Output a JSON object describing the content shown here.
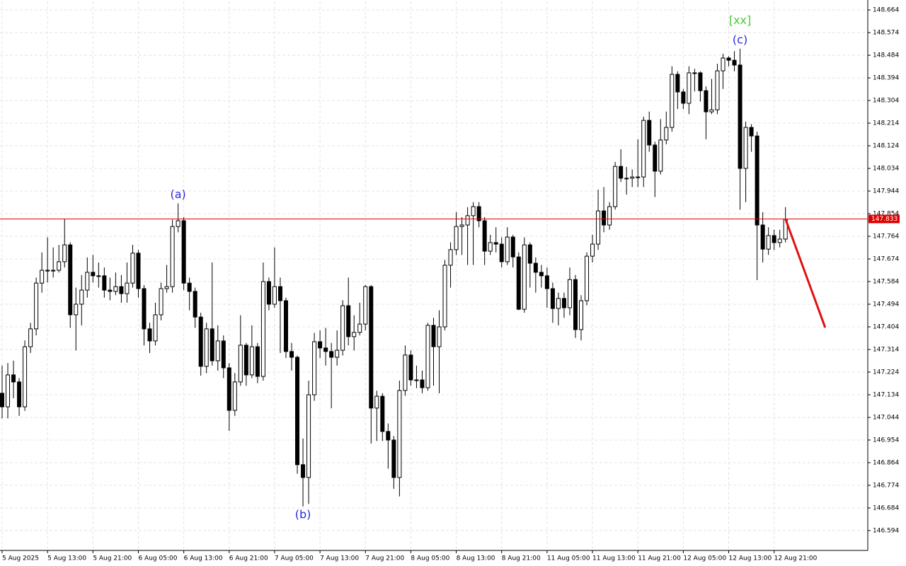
{
  "chart_data": {
    "type": "candlestick",
    "xlim": [
      -0.375,
      152.5
    ],
    "ylim": [
      146.515,
      148.698
    ],
    "yticks": [
      148.664,
      148.574,
      148.484,
      148.394,
      148.304,
      148.214,
      148.124,
      148.034,
      147.944,
      147.854,
      147.764,
      147.674,
      147.584,
      147.494,
      147.404,
      147.314,
      147.224,
      147.134,
      147.044,
      146.954,
      146.864,
      146.774,
      146.684,
      146.594
    ],
    "xticks": [
      {
        "value": 0,
        "label": "5 Aug 2025"
      },
      {
        "value": 8,
        "label": "5 Aug 13:00"
      },
      {
        "value": 16,
        "label": "5 Aug 21:00"
      },
      {
        "value": 24,
        "label": "6 Aug 05:00"
      },
      {
        "value": 32,
        "label": "6 Aug 13:00"
      },
      {
        "value": 40,
        "label": "6 Aug 21:00"
      },
      {
        "value": 48,
        "label": "7 Aug 05:00"
      },
      {
        "value": 56,
        "label": "7 Aug 13:00"
      },
      {
        "value": 64,
        "label": "7 Aug 21:00"
      },
      {
        "value": 72,
        "label": "8 Aug 05:00"
      },
      {
        "value": 80,
        "label": "8 Aug 13:00"
      },
      {
        "value": 88,
        "label": "8 Aug 21:00"
      },
      {
        "value": 96,
        "label": "11 Aug 05:00"
      },
      {
        "value": 104,
        "label": "11 Aug 13:00"
      },
      {
        "value": 112,
        "label": "11 Aug 21:00"
      },
      {
        "value": 120,
        "label": "12 Aug 05:00"
      },
      {
        "value": 128,
        "label": "12 Aug 13:00"
      },
      {
        "value": 136,
        "label": "12 Aug 21:00"
      }
    ],
    "grid": true,
    "up_color": "#ffffff",
    "down_color": "#000000",
    "open": [
      147.14,
      147.086,
      147.213,
      147.185,
      147.086,
      147.325,
      147.396,
      147.578,
      147.629,
      147.626,
      147.629,
      147.663,
      147.73,
      147.452,
      147.494,
      147.55,
      147.621,
      147.607,
      147.607,
      147.55,
      147.545,
      147.564,
      147.536,
      147.578,
      147.697,
      147.556,
      147.396,
      147.348,
      147.452,
      147.556,
      147.564,
      147.803,
      147.826,
      147.578,
      147.545,
      147.443,
      147.247,
      147.396,
      147.269,
      147.348,
      147.241,
      147.072,
      147.185,
      147.331,
      147.213,
      147.325,
      147.207,
      147.584,
      147.494,
      147.564,
      147.508,
      147.306,
      147.283,
      146.856,
      146.805,
      147.134,
      147.345,
      147.32,
      147.306,
      147.283,
      147.311,
      147.488,
      147.365,
      147.382,
      147.415,
      147.564,
      147.081,
      147.128,
      146.988,
      146.954,
      146.805,
      147.151,
      147.292,
      147.193,
      147.193,
      147.162,
      147.41,
      147.325,
      147.404,
      147.649,
      147.711,
      147.803,
      147.809,
      147.846,
      147.882,
      147.826,
      147.705,
      147.739,
      147.733,
      147.663,
      147.761,
      147.682,
      147.474,
      147.73,
      147.657,
      147.621,
      147.607,
      147.556,
      147.477,
      147.517,
      147.48,
      147.592,
      147.393,
      147.508,
      147.685,
      147.733,
      147.865,
      147.809,
      147.882,
      148.042,
      147.995,
      147.995,
      148.0,
      148.0,
      148.225,
      148.127,
      148.023,
      148.147,
      148.197,
      148.408,
      148.338,
      148.293,
      148.414,
      148.414,
      148.343,
      148.259,
      148.267,
      148.422,
      148.473,
      148.464,
      148.445,
      148.034,
      148.197,
      148.163,
      147.809,
      147.713,
      147.767,
      147.739,
      147.753
    ],
    "high": [
      147.25,
      147.26,
      147.27,
      147.2,
      147.35,
      147.42,
      147.6,
      147.7,
      147.76,
      147.72,
      147.73,
      147.833,
      147.74,
      147.56,
      147.61,
      147.68,
      147.69,
      147.66,
      147.64,
      147.6,
      147.62,
      147.61,
      147.66,
      147.73,
      147.71,
      147.57,
      147.42,
      147.5,
      147.58,
      147.65,
      147.83,
      147.895,
      147.84,
      147.6,
      147.56,
      147.46,
      147.42,
      147.66,
      147.41,
      147.37,
      147.26,
      147.22,
      147.45,
      147.34,
      147.41,
      147.34,
      147.66,
      147.6,
      147.72,
      147.6,
      147.52,
      147.34,
      147.29,
      146.96,
      147.19,
      147.38,
      147.39,
      147.4,
      147.34,
      147.39,
      147.51,
      147.6,
      147.45,
      147.5,
      147.57,
      147.57,
      147.15,
      147.14,
      147.02,
      146.97,
      147.19,
      147.33,
      147.31,
      147.25,
      147.23,
      147.42,
      147.44,
      147.47,
      147.67,
      147.74,
      147.86,
      147.84,
      147.88,
      147.9,
      147.9,
      147.84,
      147.77,
      147.8,
      147.76,
      147.8,
      147.77,
      147.7,
      147.76,
      147.74,
      147.68,
      147.65,
      147.64,
      147.58,
      147.54,
      147.54,
      147.64,
      147.61,
      147.53,
      147.7,
      147.77,
      147.95,
      147.96,
      147.9,
      148.06,
      148.11,
      148.04,
      148.03,
      148.15,
      148.24,
      148.26,
      148.14,
      148.23,
      148.26,
      148.44,
      148.42,
      148.35,
      148.44,
      148.43,
      148.42,
      148.36,
      148.39,
      148.45,
      148.49,
      148.48,
      148.5,
      148.51,
      148.22,
      148.21,
      148.18,
      147.86,
      147.8,
      147.79,
      147.79,
      147.88
    ],
    "low": [
      147.04,
      147.04,
      147.12,
      147.05,
      147.07,
      147.3,
      147.37,
      147.54,
      147.58,
      147.6,
      147.62,
      147.64,
      147.4,
      147.31,
      147.41,
      147.52,
      147.58,
      147.56,
      147.52,
      147.51,
      147.53,
      147.5,
      147.5,
      147.56,
      147.52,
      147.33,
      147.3,
      147.33,
      147.43,
      147.54,
      147.54,
      147.78,
      147.55,
      147.47,
      147.4,
      147.21,
      147.22,
      147.25,
      147.23,
      147.2,
      146.99,
      147.05,
      147.17,
      147.17,
      147.2,
      147.18,
      147.19,
      147.47,
      147.48,
      147.3,
      147.28,
      147.23,
      146.82,
      146.69,
      146.7,
      147.11,
      147.28,
      147.25,
      147.08,
      147.25,
      147.29,
      147.33,
      147.31,
      147.37,
      147.39,
      146.94,
      146.95,
      146.95,
      146.84,
      146.76,
      146.73,
      147.13,
      147.17,
      147.16,
      147.14,
      147.15,
      147.17,
      147.14,
      147.39,
      147.56,
      147.69,
      147.69,
      147.65,
      147.65,
      147.8,
      147.65,
      147.69,
      147.7,
      147.64,
      147.65,
      147.64,
      147.47,
      147.46,
      147.56,
      147.54,
      147.56,
      147.48,
      147.42,
      147.41,
      147.44,
      147.45,
      147.36,
      147.35,
      147.49,
      147.66,
      147.71,
      147.78,
      147.79,
      147.87,
      147.98,
      147.93,
      147.96,
      147.96,
      147.96,
      148.1,
      147.92,
      148.01,
      148.13,
      148.18,
      148.27,
      148.27,
      148.25,
      148.34,
      148.3,
      148.15,
      148.25,
      148.25,
      148.35,
      148.44,
      148.42,
      147.87,
      147.9,
      148.1,
      147.59,
      147.66,
      147.69,
      147.71,
      147.72,
      147.74
    ],
    "close": [
      147.086,
      147.213,
      147.185,
      147.086,
      147.325,
      147.396,
      147.578,
      147.629,
      147.626,
      147.629,
      147.663,
      147.73,
      147.452,
      147.494,
      147.55,
      147.621,
      147.607,
      147.607,
      147.55,
      147.545,
      147.564,
      147.536,
      147.578,
      147.697,
      147.556,
      147.396,
      147.348,
      147.452,
      147.556,
      147.564,
      147.803,
      147.826,
      147.578,
      147.545,
      147.443,
      147.247,
      147.396,
      147.269,
      147.348,
      147.241,
      147.072,
      147.185,
      147.331,
      147.213,
      147.325,
      147.207,
      147.584,
      147.494,
      147.564,
      147.508,
      147.306,
      147.283,
      146.856,
      146.805,
      147.134,
      147.345,
      147.32,
      147.306,
      147.283,
      147.311,
      147.488,
      147.365,
      147.382,
      147.415,
      147.564,
      147.081,
      147.128,
      146.988,
      146.954,
      146.805,
      147.151,
      147.292,
      147.193,
      147.193,
      147.162,
      147.41,
      147.325,
      147.404,
      147.649,
      147.711,
      147.803,
      147.809,
      147.846,
      147.882,
      147.826,
      147.705,
      147.739,
      147.733,
      147.663,
      147.761,
      147.682,
      147.474,
      147.73,
      147.657,
      147.621,
      147.607,
      147.556,
      147.477,
      147.517,
      147.48,
      147.592,
      147.393,
      147.508,
      147.685,
      147.733,
      147.865,
      147.809,
      147.882,
      148.042,
      147.995,
      147.995,
      148.0,
      148.0,
      148.225,
      148.127,
      148.023,
      148.147,
      148.197,
      148.408,
      148.338,
      148.293,
      148.414,
      148.414,
      148.343,
      148.259,
      148.267,
      148.422,
      148.473,
      148.464,
      148.445,
      148.034,
      148.197,
      148.163,
      147.809,
      147.713,
      147.767,
      147.739,
      147.753,
      147.833
    ],
    "price_line": {
      "value": 147.833,
      "color": "#e00000"
    },
    "forecast": {
      "x": [
        138,
        145
      ],
      "values": [
        147.833,
        147.401
      ],
      "color": "#e01010"
    },
    "annotations": [
      {
        "text": "(a)",
        "x": 31,
        "y": 147.895,
        "position": "above",
        "color": "#2a2ad8"
      },
      {
        "text": "(b)",
        "x": 53,
        "y": 146.69,
        "position": "below",
        "color": "#2a2ad8"
      },
      {
        "text": "(c)",
        "x": 130,
        "y": 148.51,
        "position": "above",
        "color": "#2a2ad8"
      },
      {
        "text": "[xx]",
        "x": 130,
        "y": 148.565,
        "position": "above",
        "color": "#4cc83c"
      }
    ]
  }
}
